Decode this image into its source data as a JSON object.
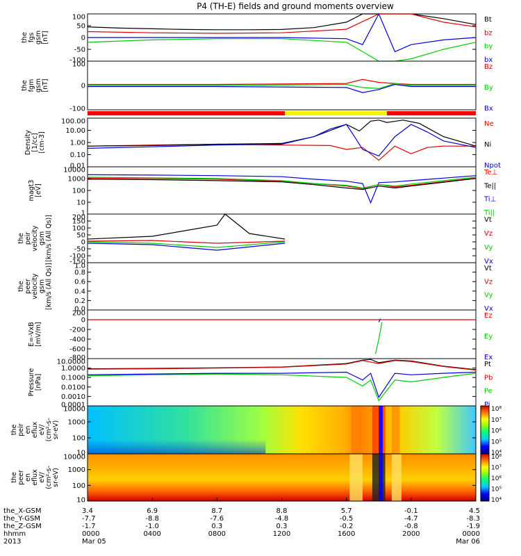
{
  "title": "P4 (TH-E) fields and ground moments overview",
  "colors": {
    "black": "#000000",
    "red": "#e00000",
    "green": "#00cc00",
    "blue": "#0000dd",
    "yellow": "#f5f500",
    "bar_red": "#ff0000"
  },
  "panels": [
    {
      "ylabel": [
        "the",
        "fgs",
        "gsm",
        "[nT]"
      ],
      "ticks": [
        "100",
        "50",
        "0",
        "-50",
        "-100"
      ],
      "legend": [
        {
          "text": "Bt",
          "c": "black"
        },
        {
          "text": "bz",
          "c": "red"
        },
        {
          "text": "by",
          "c": "green"
        },
        {
          "text": "bx",
          "c": "blue"
        }
      ]
    },
    {
      "ylabel": [
        "the",
        "fgm",
        "gsm",
        "[nT]"
      ],
      "ticks": [
        "100",
        "0",
        "-100"
      ],
      "legend": [
        {
          "text": "Bz",
          "c": "red"
        },
        {
          "text": "By",
          "c": "green"
        },
        {
          "text": "Bx",
          "c": "blue"
        }
      ]
    },
    {
      "ylabel": [
        "Density",
        "[1/cc]",
        "[cm-3]"
      ],
      "ticks": [
        "100.00",
        "10.00",
        "1.00",
        "0.10",
        "0.01"
      ],
      "legend": [
        {
          "text": "Ne",
          "c": "red"
        },
        {
          "text": "Ni",
          "c": "black"
        },
        {
          "text": "Npot",
          "c": "blue"
        }
      ]
    },
    {
      "ylabel": [
        "magt3",
        "[eV]"
      ],
      "ticks": [
        "10000",
        "1000",
        "100",
        "10",
        "1"
      ],
      "legend": [
        {
          "text": "Te⊥",
          "c": "red"
        },
        {
          "text": "Te||",
          "c": "black"
        },
        {
          "text": "Ti⊥",
          "c": "blue"
        },
        {
          "text": "Ti||",
          "c": "green"
        }
      ]
    },
    {
      "ylabel": [
        "the",
        "peir",
        "velocity",
        "gsm",
        "[km/s (All Qs)]"
      ],
      "ticks": [
        "200",
        "150",
        "100",
        "50",
        "0",
        "-50",
        "-100",
        "-150"
      ],
      "legend": [
        {
          "text": "Vt",
          "c": "black"
        },
        {
          "text": "Vz",
          "c": "red"
        },
        {
          "text": "Vy",
          "c": "green"
        },
        {
          "text": "Vx",
          "c": "blue"
        }
      ]
    },
    {
      "ylabel": [
        "the",
        "peer",
        "velocity",
        "gsm",
        "[km/s (All Qs)]"
      ],
      "ticks": [
        "1.0",
        "0.8",
        "0.6",
        "0.4",
        "0.2",
        "0.0"
      ],
      "legend": [
        {
          "text": "Vt",
          "c": "black"
        },
        {
          "text": "Vz",
          "c": "red"
        },
        {
          "text": "Vy",
          "c": "green"
        },
        {
          "text": "Vx",
          "c": "blue"
        }
      ]
    },
    {
      "ylabel": [
        "E=-VxB",
        "[mV/m]"
      ],
      "ticks": [
        "200",
        "0",
        "-200",
        "-400",
        "-600",
        "-800"
      ],
      "legend": [
        {
          "text": "Ez",
          "c": "red"
        },
        {
          "text": "Ey",
          "c": "green"
        },
        {
          "text": "Ex",
          "c": "blue"
        }
      ]
    },
    {
      "ylabel": [
        "Pressure",
        "[nPa]"
      ],
      "ticks": [
        "10.0000",
        "1.0000",
        "0.1000",
        "0.0100",
        "0.0010",
        "0.0001"
      ],
      "legend": [
        {
          "text": "Pt",
          "c": "black"
        },
        {
          "text": "Pb",
          "c": "red"
        },
        {
          "text": "Pe",
          "c": "green"
        },
        {
          "text": "Pi",
          "c": "blue"
        }
      ]
    },
    {
      "ylabel": [
        "the",
        "peir",
        "en",
        "eflux",
        "eV/",
        "(cm²-s-",
        "sr-eV)"
      ],
      "ticks": [
        "10000",
        "1000",
        "100",
        "10"
      ]
    },
    {
      "ylabel": [
        "the",
        "peer",
        "en",
        "eflux",
        "eV/",
        "(cm²-s-",
        "sr-eV)"
      ],
      "ticks": [
        "10000",
        "1000",
        "100",
        "10"
      ]
    }
  ],
  "colorbar_top": [
    "10⁸",
    "10⁷",
    "10⁶",
    "10⁵",
    "10⁴"
  ],
  "colorbar_bottom": [
    "10⁸",
    "10⁷",
    "10⁶",
    "10⁵",
    "10⁴"
  ],
  "xaxis": {
    "row_labels": [
      "the_X-GSM",
      "the_Y-GSM",
      "the_Z-GSM",
      "hhmm",
      "2013"
    ],
    "columns": [
      {
        "vals": [
          "3.4",
          "-7.7",
          "-1.7",
          "0000",
          "Mar 05"
        ]
      },
      {
        "vals": [
          "6.9",
          "-8.8",
          "-1.0",
          "0400",
          ""
        ]
      },
      {
        "vals": [
          "8.7",
          "-7.6",
          "0.3",
          "0800",
          ""
        ]
      },
      {
        "vals": [
          "8.8",
          "-4.8",
          "0.3",
          "1200",
          ""
        ]
      },
      {
        "vals": [
          "5.7",
          "-0.5",
          "-0.2",
          "1600",
          ""
        ]
      },
      {
        "vals": [
          "-0.1",
          "-4.7",
          "-0.8",
          "2000",
          ""
        ]
      },
      {
        "vals": [
          "4.5",
          "-8.3",
          "-1.9",
          "0000",
          "Mar 06"
        ]
      }
    ]
  },
  "chart_data": {
    "type": "line",
    "title": "P4 (TH-E) fields and ground moments overview",
    "x_tick_labels": [
      "0000",
      "0400",
      "0800",
      "1200",
      "1600",
      "2000",
      "0000"
    ],
    "x_hours": [
      0,
      4,
      8,
      12,
      16,
      20,
      24
    ],
    "panels": [
      {
        "ylim": [
          -100,
          100
        ],
        "series": [
          {
            "name": "Bt",
            "x": [
              0,
              2,
              4,
              6,
              8,
              10,
              12,
              14,
              16,
              17,
              18,
              19,
              20,
              22,
              24
            ],
            "y": [
              45,
              40,
              37,
              34,
              33,
              33,
              34,
              42,
              65,
              100,
              100,
              100,
              100,
              80,
              55
            ]
          },
          {
            "name": "bz",
            "x": [
              0,
              4,
              8,
              12,
              16,
              18,
              19,
              20,
              22,
              24
            ],
            "y": [
              25,
              20,
              18,
              20,
              35,
              100,
              100,
              100,
              65,
              45
            ]
          },
          {
            "name": "by",
            "x": [
              0,
              4,
              8,
              12,
              16,
              17,
              18,
              19,
              20,
              22,
              24
            ],
            "y": [
              -20,
              -10,
              -5,
              -5,
              -20,
              -60,
              -100,
              -100,
              -90,
              -50,
              -20
            ]
          },
          {
            "name": "bx",
            "x": [
              0,
              4,
              8,
              12,
              16,
              17,
              18,
              19,
              20,
              22,
              24
            ],
            "y": [
              0,
              0,
              0,
              0,
              -5,
              -30,
              100,
              -60,
              -30,
              -10,
              0
            ]
          }
        ]
      },
      {
        "ylim": [
          -120,
          120
        ],
        "series": [
          {
            "name": "Bz",
            "x": [
              0,
              8,
              16,
              17,
              18,
              19,
              20,
              24
            ],
            "y": [
              5,
              5,
              10,
              30,
              15,
              10,
              5,
              5
            ]
          },
          {
            "name": "By",
            "x": [
              0,
              8,
              16,
              17,
              18,
              19,
              20,
              24
            ],
            "y": [
              0,
              0,
              5,
              -10,
              -15,
              10,
              0,
              0
            ]
          },
          {
            "name": "Bx",
            "x": [
              0,
              8,
              16,
              17,
              18,
              19,
              20,
              24
            ],
            "y": [
              -5,
              -5,
              -10,
              -35,
              -20,
              5,
              -5,
              -5
            ]
          }
        ]
      },
      {
        "log": true,
        "ylim": [
          0.005,
          150
        ],
        "series": [
          {
            "name": "Ne",
            "x": [
              0,
              4,
              8,
              12,
              15,
              16,
              17,
              18,
              19,
              20,
              21,
              22,
              24
            ],
            "y": [
              0.4,
              0.5,
              0.6,
              0.5,
              0.45,
              0.2,
              0.3,
              0.02,
              0.4,
              0.08,
              0.3,
              0.4,
              0.4
            ]
          },
          {
            "name": "Ni",
            "x": [
              0,
              4,
              8,
              12,
              14,
              16,
              16.8,
              17.5,
              18,
              18.5,
              19.5,
              20.5,
              22,
              24
            ],
            "y": [
              0.4,
              0.45,
              0.6,
              0.7,
              3,
              40,
              10,
              80,
              100,
              60,
              100,
              50,
              3,
              0.4
            ]
          },
          {
            "name": "Npot",
            "x": [
              0,
              4,
              8,
              12,
              14,
              15,
              16,
              16.5,
              17,
              18,
              19,
              20,
              21,
              22,
              24
            ],
            "y": [
              0.25,
              0.35,
              0.5,
              0.6,
              3,
              15,
              40,
              3,
              0.2,
              0.05,
              3,
              40,
              8,
              1.2,
              0.3
            ]
          }
        ]
      },
      {
        "log": true,
        "ylim": [
          1,
          15000
        ],
        "series": [
          {
            "name": "Te⊥",
            "x": [
              0,
              4,
              8,
              12,
              14,
              16,
              17,
              18,
              19,
              20,
              24
            ],
            "y": [
              1500,
              1400,
              1200,
              800,
              500,
              300,
              180,
              400,
              250,
              350,
              1500
            ]
          },
          {
            "name": "Te||",
            "x": [
              0,
              4,
              8,
              12,
              14,
              16,
              17,
              18,
              19,
              20,
              24
            ],
            "y": [
              1200,
              1100,
              900,
              700,
              400,
              200,
              150,
              300,
              200,
              300,
              1400
            ]
          },
          {
            "name": "Ti⊥",
            "x": [
              0,
              4,
              8,
              12,
              14,
              16,
              17,
              17.5,
              18,
              19,
              20,
              24
            ],
            "y": [
              3000,
              2800,
              2500,
              2000,
              1200,
              800,
              500,
              10,
              600,
              700,
              900,
              2500
            ]
          },
          {
            "name": "Ti||",
            "x": [
              0,
              4,
              8,
              12,
              14,
              16,
              17,
              18,
              19,
              20,
              24
            ],
            "y": [
              1800,
              1600,
              1400,
              900,
              500,
              350,
              200,
              400,
              300,
              450,
              1800
            ]
          }
        ]
      },
      {
        "ylim": [
          -150,
          200
        ],
        "series": [
          {
            "name": "Vt",
            "x": [
              0,
              4,
              6,
              8,
              8.5,
              10,
              12.2
            ],
            "y": [
              20,
              40,
              80,
              120,
              200,
              60,
              20
            ]
          },
          {
            "name": "Vz",
            "x": [
              0,
              4,
              8,
              12.2
            ],
            "y": [
              5,
              10,
              -10,
              5
            ]
          },
          {
            "name": "Vy",
            "x": [
              0,
              4,
              8,
              12.2
            ],
            "y": [
              0,
              -10,
              -40,
              0
            ]
          },
          {
            "name": "Vx",
            "x": [
              0,
              4,
              8,
              12.2
            ],
            "y": [
              -10,
              -20,
              -60,
              -10
            ]
          }
        ]
      },
      {
        "ylim": [
          0,
          1
        ],
        "series": []
      },
      {
        "ylim": [
          -800,
          200
        ],
        "series": [
          {
            "name": "Ez",
            "x": [
              0,
              12.2,
              18.7,
              24
            ],
            "y": [
              0,
              0,
              0,
              0
            ]
          },
          {
            "name": "Ey",
            "x": [
              17.8,
              18.0,
              18.2
            ],
            "y": [
              -700,
              -400,
              -50
            ]
          },
          {
            "name": "Ex",
            "x": [
              18.0,
              18.1
            ],
            "y": [
              -50,
              20
            ]
          }
        ]
      },
      {
        "log": true,
        "ylim": [
          5e-05,
          15
        ],
        "series": [
          {
            "name": "Pt",
            "x": [
              0,
              4,
              8,
              12,
              16,
              17,
              17.5,
              18,
              19,
              20,
              22,
              24
            ],
            "y": [
              1.0,
              1.1,
              1.3,
              1.6,
              4,
              10,
              12,
              5,
              10,
              8,
              2,
              0.8
            ]
          },
          {
            "name": "Pb",
            "x": [
              0,
              4,
              8,
              12,
              16,
              17,
              18,
              19,
              20,
              22,
              24
            ],
            "y": [
              0.9,
              1.0,
              1.2,
              1.5,
              3.5,
              9,
              4,
              9,
              7,
              1.8,
              0.7
            ]
          },
          {
            "name": "Pe",
            "x": [
              0,
              4,
              8,
              12,
              16,
              17,
              17.5,
              18,
              19,
              20,
              22,
              24
            ],
            "y": [
              0.15,
              0.2,
              0.25,
              0.2,
              0.1,
              0.01,
              0.05,
              0.0002,
              0.05,
              0.03,
              0.1,
              0.3
            ]
          },
          {
            "name": "Pi",
            "x": [
              0,
              4,
              8,
              12,
              16,
              17,
              17.5,
              18,
              19,
              20,
              22,
              24
            ],
            "y": [
              0.2,
              0.25,
              0.3,
              0.3,
              0.4,
              0.05,
              0.3,
              0.0005,
              0.3,
              0.2,
              0.3,
              0.4
            ]
          }
        ]
      }
    ]
  }
}
